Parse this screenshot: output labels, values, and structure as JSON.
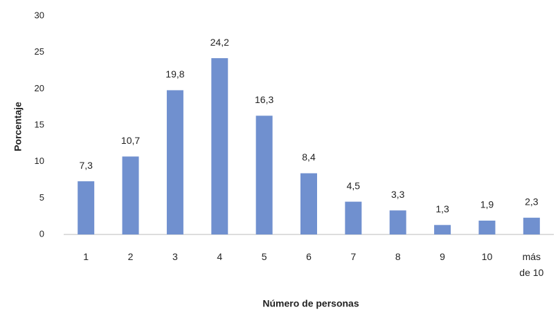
{
  "chart_data": {
    "type": "bar",
    "y_label": "Porcentaje",
    "x_label": "Número de personas",
    "categories": [
      "1",
      "2",
      "3",
      "4",
      "5",
      "6",
      "7",
      "8",
      "9",
      "10",
      "más de 10"
    ],
    "values": [
      7.3,
      10.7,
      19.8,
      24.2,
      16.3,
      8.4,
      4.5,
      3.3,
      1.3,
      1.9,
      2.3
    ],
    "value_labels": [
      "7,3",
      "10,7",
      "19,8",
      "24,2",
      "16,3",
      "8,4",
      "4,5",
      "3,3",
      "1,3",
      "1,9",
      "2,3"
    ],
    "color": "#7090cf",
    "ylim": [
      0,
      30
    ],
    "yticks": [
      0,
      5,
      10,
      15,
      20,
      25,
      30
    ],
    "grid": false
  }
}
